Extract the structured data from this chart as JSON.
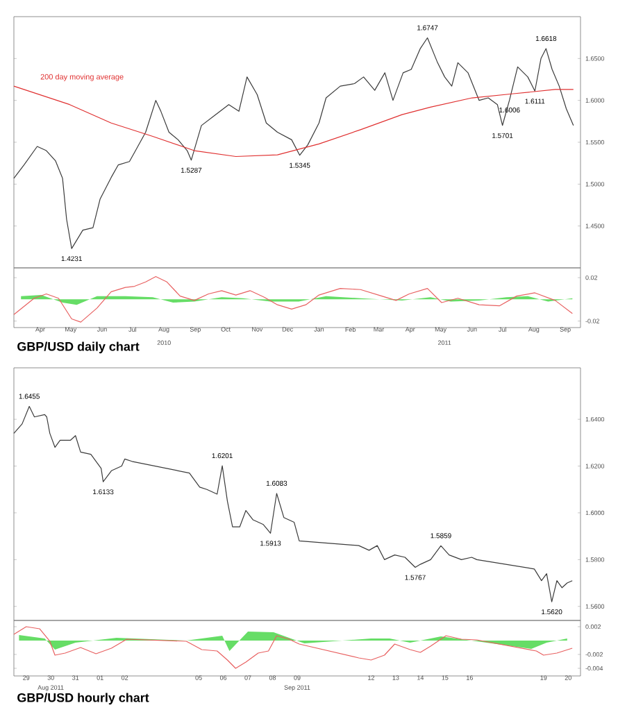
{
  "chart_data": [
    {
      "type": "line",
      "xlim": [
        "2010-03-20",
        "2011-09-30"
      ],
      "ylim": [
        1.4,
        1.7
      ],
      "tick_labels": "y",
      "yticks": [
        {
          "value": 1.65,
          "label": "1.6500"
        },
        {
          "value": 1.6,
          "label": "1.6000"
        },
        {
          "value": 1.55,
          "label": "1.5500"
        },
        {
          "value": 1.5,
          "label": "1.5000"
        },
        {
          "value": 1.45,
          "label": "1.4500"
        }
      ],
      "annotations": [
        "200 day moving average",
        {
          "text": "1.4231",
          "x": "2010-05-16",
          "y": 1.4231
        },
        {
          "text": "1.5287",
          "x": "2010-09-11",
          "y": 1.5287
        },
        {
          "text": "1.5345",
          "x": "2010-12-27",
          "y": 1.5345
        },
        {
          "text": "1.6747",
          "x": "2011-05-02",
          "y": 1.6747
        },
        {
          "text": "1.5701",
          "x": "2011-07-15",
          "y": 1.5701
        },
        {
          "text": "1.6006",
          "x": "2011-07-22",
          "y": 1.6006
        },
        {
          "text": "1.6111",
          "x": "2011-08-16",
          "y": 1.6111
        },
        {
          "text": "1.6618",
          "x": "2011-08-27",
          "y": 1.6618
        }
      ],
      "series": [
        {
          "color": "#3a3a3a",
          "x": [
            "2010-03-20",
            "2010-03-30",
            "2010-04-12",
            "2010-04-21",
            "2010-04-30",
            "2010-05-07",
            "2010-05-11",
            "2010-05-16",
            "2010-05-27",
            "2010-06-06",
            "2010-06-13",
            "2010-06-24",
            "2010-07-01",
            "2010-07-12",
            "2010-07-18",
            "2010-07-28",
            "2010-08-07",
            "2010-08-12",
            "2010-08-20",
            "2010-08-29",
            "2010-09-07",
            "2010-09-11",
            "2010-09-21",
            "2010-10-05",
            "2010-10-18",
            "2010-10-28",
            "2010-11-05",
            "2010-11-15",
            "2010-11-24",
            "2010-12-05",
            "2010-12-19",
            "2010-12-27",
            "2011-01-04",
            "2011-01-15",
            "2011-01-22",
            "2011-02-05",
            "2011-02-19",
            "2011-02-28",
            "2011-03-11",
            "2011-03-21",
            "2011-03-29",
            "2011-04-08",
            "2011-04-16",
            "2011-04-25",
            "2011-05-02",
            "2011-05-12",
            "2011-05-19",
            "2011-05-26",
            "2011-06-01",
            "2011-06-11",
            "2011-06-22",
            "2011-07-01",
            "2011-07-10",
            "2011-07-15",
            "2011-07-22",
            "2011-07-30",
            "2011-08-09",
            "2011-08-16",
            "2011-08-22",
            "2011-08-27",
            "2011-09-02",
            "2011-09-09",
            "2011-09-16",
            "2011-09-23"
          ],
          "values": [
            1.507,
            1.523,
            1.545,
            1.54,
            1.528,
            1.507,
            1.458,
            1.4231,
            1.445,
            1.448,
            1.482,
            1.508,
            1.523,
            1.527,
            1.54,
            1.562,
            1.6,
            1.587,
            1.562,
            1.553,
            1.54,
            1.5287,
            1.57,
            1.583,
            1.595,
            1.587,
            1.628,
            1.607,
            1.573,
            1.562,
            1.553,
            1.5345,
            1.547,
            1.573,
            1.603,
            1.617,
            1.62,
            1.628,
            1.612,
            1.633,
            1.6,
            1.633,
            1.637,
            1.662,
            1.6747,
            1.645,
            1.628,
            1.617,
            1.645,
            1.633,
            1.6,
            1.603,
            1.595,
            1.5701,
            1.6006,
            1.64,
            1.628,
            1.6111,
            1.65,
            1.6618,
            1.637,
            1.617,
            1.59,
            1.57
          ]
        },
        {
          "color": "#e03030",
          "x": [
            "2010-03-20",
            "2010-05-14",
            "2010-06-24",
            "2010-08-04",
            "2010-09-14",
            "2010-10-25",
            "2010-12-05",
            "2011-01-15",
            "2011-02-25",
            "2011-04-07",
            "2011-05-05",
            "2011-06-15",
            "2011-07-26",
            "2011-09-05",
            "2011-09-23"
          ],
          "values": [
            1.617,
            1.595,
            1.573,
            1.557,
            1.54,
            1.533,
            1.535,
            1.548,
            1.565,
            1.583,
            1.592,
            1.603,
            1.608,
            1.613,
            1.613
          ]
        }
      ]
    },
    {
      "type": "line",
      "title": "GBP/USD daily chart",
      "xlim": [
        "2010-03-20",
        "2011-09-30"
      ],
      "ylim": [
        -0.026,
        0.029
      ],
      "yticks": [
        0.02,
        -0.02
      ],
      "xticks": [
        {
          "value": "2010-04-15",
          "label": "Apr"
        },
        {
          "value": "2010-05-15",
          "label": "May"
        },
        {
          "value": "2010-06-15",
          "label": "Jun"
        },
        {
          "value": "2010-07-15",
          "label": "Jul"
        },
        {
          "value": "2010-08-15",
          "label": "Aug"
        },
        {
          "value": "2010-09-15",
          "label": "Sep"
        },
        {
          "value": "2010-10-15",
          "label": "Oct"
        },
        {
          "value": "2010-11-15",
          "label": "Nov"
        },
        {
          "value": "2010-12-15",
          "label": "Dec"
        },
        {
          "value": "2011-01-15",
          "label": "Jan"
        },
        {
          "value": "2011-02-15",
          "label": "Feb"
        },
        {
          "value": "2011-03-15",
          "label": "Mar"
        },
        {
          "value": "2011-04-15",
          "label": "Apr"
        },
        {
          "value": "2011-05-15",
          "label": "May"
        },
        {
          "value": "2011-06-15",
          "label": "Jun"
        },
        {
          "value": "2011-07-15",
          "label": "Jul"
        },
        {
          "value": "2011-08-15",
          "label": "Aug"
        },
        {
          "value": "2011-09-15",
          "label": "Sep"
        }
      ],
      "annotations": [
        "2010",
        "2011"
      ],
      "series": [
        {
          "type": "area",
          "color": "#66dd66",
          "x": [
            "2010-03-27",
            "2010-04-16",
            "2010-05-07",
            "2010-05-21",
            "2010-06-10",
            "2010-07-08",
            "2010-08-04",
            "2010-08-24",
            "2010-09-14",
            "2010-10-11",
            "2010-11-01",
            "2010-11-28",
            "2010-12-26",
            "2011-01-22",
            "2011-02-25",
            "2011-04-07",
            "2011-05-05",
            "2011-05-25",
            "2011-06-22",
            "2011-07-19",
            "2011-08-09",
            "2011-08-29",
            "2011-09-22"
          ],
          "values": [
            0.003,
            0.004,
            -0.003,
            -0.005,
            0.003,
            0.003,
            0.002,
            -0.003,
            -0.002,
            0.002,
            0.001,
            -0.002,
            -0.002,
            0.003,
            0.001,
            -0.001,
            0.002,
            -0.002,
            -0.001,
            0.002,
            0.003,
            -0.002,
            0.001
          ]
        },
        {
          "color": "#e86060",
          "x": [
            "2010-03-20",
            "2010-04-09",
            "2010-04-21",
            "2010-05-03",
            "2010-05-16",
            "2010-05-25",
            "2010-06-10",
            "2010-06-24",
            "2010-07-08",
            "2010-07-17",
            "2010-07-28",
            "2010-08-07",
            "2010-08-18",
            "2010-08-31",
            "2010-09-14",
            "2010-09-28",
            "2010-10-11",
            "2010-10-25",
            "2010-11-08",
            "2010-11-22",
            "2010-12-05",
            "2010-12-19",
            "2011-01-02",
            "2011-01-15",
            "2011-02-05",
            "2011-02-25",
            "2011-03-18",
            "2011-04-01",
            "2011-04-14",
            "2011-05-02",
            "2011-05-16",
            "2011-06-01",
            "2011-06-22",
            "2011-07-12",
            "2011-07-29",
            "2011-08-16",
            "2011-09-05",
            "2011-09-22"
          ],
          "values": [
            -0.014,
            0.001,
            0.005,
            0.001,
            -0.018,
            -0.021,
            -0.008,
            0.007,
            0.011,
            0.012,
            0.016,
            0.021,
            0.016,
            0.003,
            -0.001,
            0.005,
            0.008,
            0.004,
            0.008,
            0.002,
            -0.005,
            -0.009,
            -0.005,
            0.004,
            0.01,
            0.009,
            0.003,
            -0.001,
            0.005,
            0.01,
            -0.003,
            0.001,
            -0.005,
            -0.006,
            0.003,
            0.006,
            -0.001,
            -0.013
          ]
        }
      ]
    },
    {
      "type": "line",
      "xlim": [
        "2011-08-29T00:00",
        "2011-09-21T00:00"
      ],
      "ylim": [
        1.554,
        1.662
      ],
      "tick_labels": "y",
      "yticks": [
        {
          "value": 1.64,
          "label": "1.6400"
        },
        {
          "value": 1.62,
          "label": "1.6200"
        },
        {
          "value": 1.6,
          "label": "1.6000"
        },
        {
          "value": 1.58,
          "label": "1.5800"
        },
        {
          "value": 1.56,
          "label": "1.5600"
        }
      ],
      "annotations": [
        {
          "text": "1.6455",
          "x": "2011-08-29T15:00",
          "y": 1.6455
        },
        {
          "text": "1.6133",
          "x": "2011-09-01T15:00",
          "y": 1.6133
        },
        {
          "text": "1.6201",
          "x": "2011-09-06T11:00",
          "y": 1.6201
        },
        {
          "text": "1.5913",
          "x": "2011-09-08T10:00",
          "y": 1.5913
        },
        {
          "text": "1.6083",
          "x": "2011-09-08T16:00",
          "y": 1.6083
        },
        {
          "text": "1.5767",
          "x": "2011-09-14T07:00",
          "y": 1.5767
        },
        {
          "text": "1.5859",
          "x": "2011-09-15T08:00",
          "y": 1.5859
        },
        {
          "text": "1.5620",
          "x": "2011-09-19T20:00",
          "y": 1.562
        }
      ],
      "series": [
        {
          "color": "#3a3a3a",
          "x": [
            "2011-08-29T00:00",
            "2011-08-29T08:00",
            "2011-08-29T15:00",
            "2011-08-29T20:00",
            "2011-08-30T06:00",
            "2011-08-30T08:00",
            "2011-08-30T11:00",
            "2011-08-30T16:00",
            "2011-08-30T21:00",
            "2011-08-31T07:00",
            "2011-08-31T12:00",
            "2011-08-31T17:00",
            "2011-09-01T03:00",
            "2011-09-01T13:00",
            "2011-09-01T15:00",
            "2011-09-01T23:00",
            "2011-09-02T09:00",
            "2011-09-02T12:00",
            "2011-09-02T19:00",
            "2011-09-05T03:00",
            "2011-09-05T13:00",
            "2011-09-05T20:00",
            "2011-09-06T06:00",
            "2011-09-06T11:00",
            "2011-09-06T16:00",
            "2011-09-06T21:00",
            "2011-09-07T04:00",
            "2011-09-07T10:00",
            "2011-09-07T17:00",
            "2011-09-08T03:00",
            "2011-09-08T10:00",
            "2011-09-08T16:00",
            "2011-09-08T23:00",
            "2011-09-09T09:00",
            "2011-09-09T14:00",
            "2011-09-12T00:00",
            "2011-09-12T10:00",
            "2011-09-12T18:00",
            "2011-09-13T01:00",
            "2011-09-13T11:00",
            "2011-09-13T21:00",
            "2011-09-14T07:00",
            "2011-09-14T12:00",
            "2011-09-14T22:00",
            "2011-09-15T08:00",
            "2011-09-15T16:00",
            "2011-09-16T04:00",
            "2011-09-16T14:00",
            "2011-09-16T19:00",
            "2011-09-19T03:00",
            "2011-09-19T10:00",
            "2011-09-19T15:00",
            "2011-09-19T20:00",
            "2011-09-20T01:00",
            "2011-09-20T06:00",
            "2011-09-20T11:00",
            "2011-09-20T16:00"
          ],
          "values": [
            1.634,
            1.638,
            1.6455,
            1.641,
            1.642,
            1.641,
            1.634,
            1.628,
            1.631,
            1.631,
            1.633,
            1.626,
            1.625,
            1.619,
            1.6133,
            1.618,
            1.62,
            1.623,
            1.622,
            1.617,
            1.611,
            1.61,
            1.608,
            1.6201,
            1.605,
            1.594,
            1.594,
            1.601,
            1.597,
            1.595,
            1.5913,
            1.6083,
            1.598,
            1.596,
            1.588,
            1.586,
            1.584,
            1.586,
            1.58,
            1.582,
            1.581,
            1.5767,
            1.578,
            1.58,
            1.5859,
            1.582,
            1.58,
            1.581,
            1.58,
            1.576,
            1.571,
            1.574,
            1.562,
            1.571,
            1.568,
            1.57,
            1.571
          ]
        }
      ]
    },
    {
      "type": "line",
      "title": "GBP/USD hourly chart",
      "xlim": [
        "2011-08-29T00:00",
        "2011-09-21T00:00"
      ],
      "ylim": [
        -0.0051,
        0.0029
      ],
      "yticks": [
        0.002,
        -0.002,
        -0.004
      ],
      "xticks": [
        {
          "value": "2011-08-29T12:00",
          "label": "29"
        },
        {
          "value": "2011-08-30T12:00",
          "label": "30"
        },
        {
          "value": "2011-08-31T12:00",
          "label": "31"
        },
        {
          "value": "2011-09-01T12:00",
          "label": "01"
        },
        {
          "value": "2011-09-02T12:00",
          "label": "02"
        },
        {
          "value": "2011-09-05T12:00",
          "label": "05"
        },
        {
          "value": "2011-09-06T12:00",
          "label": "06"
        },
        {
          "value": "2011-09-07T12:00",
          "label": "07"
        },
        {
          "value": "2011-09-08T12:00",
          "label": "08"
        },
        {
          "value": "2011-09-09T12:00",
          "label": "09"
        },
        {
          "value": "2011-09-12T12:00",
          "label": "12"
        },
        {
          "value": "2011-09-13T12:00",
          "label": "13"
        },
        {
          "value": "2011-09-14T12:00",
          "label": "14"
        },
        {
          "value": "2011-09-15T12:00",
          "label": "15"
        },
        {
          "value": "2011-09-16T12:00",
          "label": "16"
        },
        {
          "value": "2011-09-19T12:00",
          "label": "19"
        },
        {
          "value": "2011-09-20T12:00",
          "label": "20"
        }
      ],
      "annotations": [
        "Aug 2011",
        "Sep 2011"
      ],
      "series": [
        {
          "type": "area",
          "color": "#66dd66",
          "x": [
            "2011-08-29T05:00",
            "2011-08-30T06:00",
            "2011-08-30T16:00",
            "2011-08-31T12:00",
            "2011-09-02T04:00",
            "2011-09-05T00:00",
            "2011-09-06T11:00",
            "2011-09-06T18:00",
            "2011-09-07T12:00",
            "2011-09-08T13:00",
            "2011-09-09T19:00",
            "2011-09-12T12:00",
            "2011-09-13T06:00",
            "2011-09-14T02:00",
            "2011-09-15T08:00",
            "2011-09-16T04:00",
            "2011-09-19T00:00",
            "2011-09-19T15:00",
            "2011-09-20T11:00"
          ],
          "values": [
            0.0008,
            0.0003,
            -0.0013,
            -0.0003,
            0.0004,
            0.0,
            0.0007,
            -0.0015,
            0.0013,
            0.0012,
            -0.0004,
            0.0003,
            0.0003,
            -0.0003,
            0.0006,
            0.0002,
            -0.0012,
            -0.0003,
            0.0003
          ]
        },
        {
          "color": "#e86060",
          "x": [
            "2011-08-29T00:00",
            "2011-08-29T12:00",
            "2011-08-30T01:00",
            "2011-08-30T11:00",
            "2011-08-30T16:00",
            "2011-08-31T02:00",
            "2011-08-31T17:00",
            "2011-09-01T08:00",
            "2011-09-01T23:00",
            "2011-09-02T14:00",
            "2011-09-05T00:00",
            "2011-09-05T15:00",
            "2011-09-06T06:00",
            "2011-09-06T16:00",
            "2011-09-07T00:00",
            "2011-09-07T10:00",
            "2011-09-07T22:00",
            "2011-09-08T08:00",
            "2011-09-08T16:00",
            "2011-09-09T04:00",
            "2011-09-09T14:00",
            "2011-09-12T00:00",
            "2011-09-12T12:00",
            "2011-09-13T01:00",
            "2011-09-13T11:00",
            "2011-09-14T02:00",
            "2011-09-14T12:00",
            "2011-09-14T22:00",
            "2011-09-15T13:00",
            "2011-09-16T04:00",
            "2011-09-16T19:00",
            "2011-09-19T05:00",
            "2011-09-19T12:00",
            "2011-09-20T01:00",
            "2011-09-20T16:00"
          ],
          "values": [
            0.0009,
            0.002,
            0.0017,
            -0.0001,
            -0.0021,
            -0.0018,
            -0.001,
            -0.0019,
            -0.0011,
            0.0002,
            -0.0001,
            -0.0013,
            -0.0015,
            -0.0028,
            -0.004,
            -0.0031,
            -0.0018,
            -0.0015,
            0.0007,
            0.0002,
            -0.0005,
            -0.0025,
            -0.0028,
            -0.0021,
            -0.0005,
            -0.0013,
            -0.0017,
            -0.0008,
            0.0007,
            0.0002,
            0.0001,
            -0.0015,
            -0.0021,
            -0.0018,
            -0.0011
          ]
        }
      ]
    }
  ]
}
